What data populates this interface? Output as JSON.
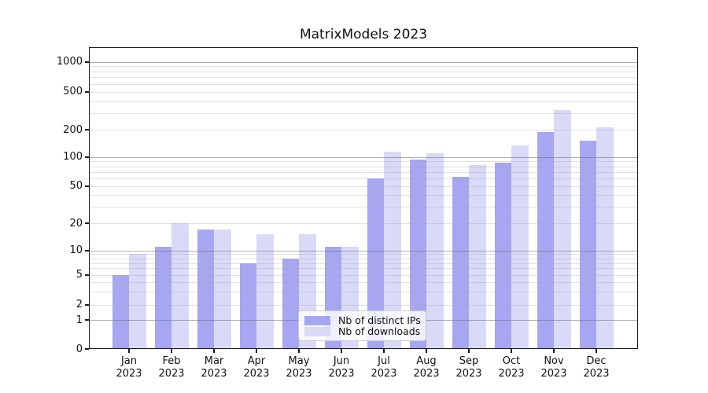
{
  "chart_data": {
    "type": "bar",
    "title": "MatrixModels 2023",
    "categories": [
      "Jan 2023",
      "Feb 2023",
      "Mar 2023",
      "Apr 2023",
      "May 2023",
      "Jun 2023",
      "Jul 2023",
      "Aug 2023",
      "Sep 2023",
      "Oct 2023",
      "Nov 2023",
      "Dec 2023"
    ],
    "series": [
      {
        "name": "Nb of distinct IPs",
        "color": "#a6a6f2",
        "values": [
          5,
          11,
          17,
          7,
          8,
          11,
          60,
          93,
          62,
          87,
          190,
          150
        ]
      },
      {
        "name": "Nb of downloads",
        "color": "#d9d9f8",
        "values": [
          9,
          20,
          17,
          15,
          15,
          11,
          115,
          110,
          83,
          135,
          320,
          210
        ]
      }
    ],
    "yscale": "symlog",
    "yticks": [
      0,
      1,
      2,
      5,
      10,
      20,
      50,
      100,
      200,
      500,
      1000
    ],
    "ylim": [
      0,
      1400
    ],
    "xlabel": "",
    "ylabel": "",
    "grid": "horizontal major and minor gridlines drawn over bars",
    "legend_position": "lower center inside plot"
  }
}
